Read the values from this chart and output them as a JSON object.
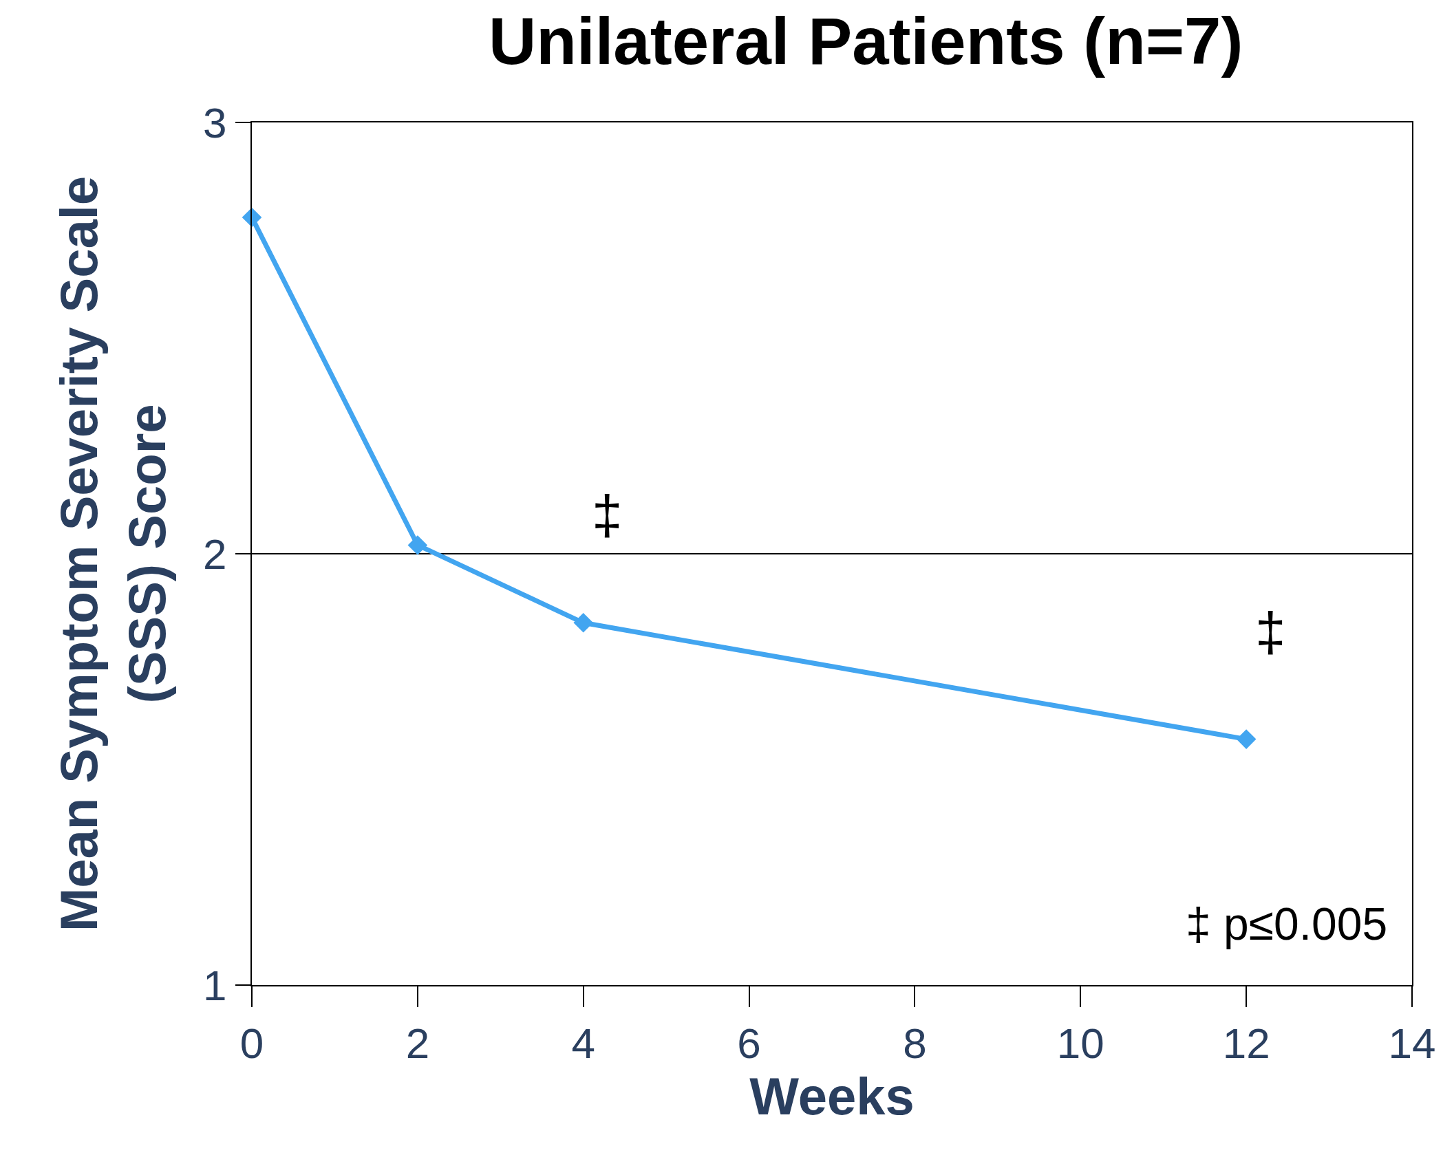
{
  "chart_data": {
    "type": "line",
    "title": "Unilateral Patients (n=7)",
    "xlabel": "Weeks",
    "ylabel": "Mean Symptom Severity Scale\n(SSS) Score",
    "x": [
      0,
      2,
      4,
      12
    ],
    "series": [
      {
        "color": "#42a5f0",
        "values": [
          2.78,
          2.02,
          1.84,
          1.57
        ]
      }
    ],
    "xlim": [
      0,
      14
    ],
    "xticks": [
      0,
      2,
      4,
      6,
      8,
      10,
      12,
      14
    ],
    "ylim": [
      1,
      3
    ],
    "yticks": [
      1,
      2,
      3
    ],
    "grid": "y",
    "legend": false,
    "marker": "diamond",
    "line_style": "solid",
    "annotations": [
      {
        "text": "‡",
        "x": 4,
        "y": 1.84
      },
      {
        "text": "‡",
        "x": 12,
        "y": 1.57
      },
      "‡ p≤0.005"
    ]
  }
}
